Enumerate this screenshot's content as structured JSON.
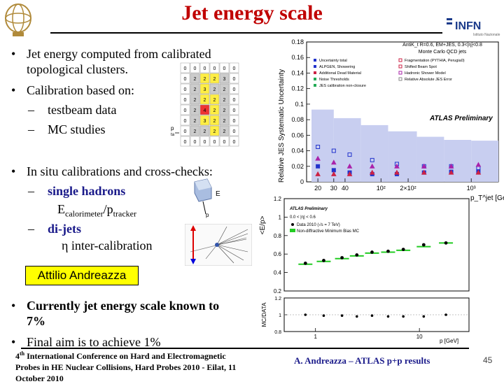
{
  "title": "Jet energy scale",
  "bullets": {
    "b1_line1": "Jet energy computed from calibrated",
    "b1_line2": "topological clusters.",
    "b2": "Calibration based on:",
    "b2_sub1": "testbeam data",
    "b2_sub2": "MC studies",
    "b3": "In situ calibrations and cross-checks:",
    "b3_sub1": "single hadrons",
    "b3_sub1_detail_E": "E",
    "b3_sub1_detail_Esub": "calorimeter",
    "b3_sub1_detail_slash": "/p",
    "b3_sub1_detail_psub": "tracker",
    "b3_sub2": "di-jets",
    "b3_sub2_detail": "η inter-calibration",
    "b4_line1": "Currently jet energy scale known to",
    "b4_line2": "7%",
    "b5": "Final aim is to achieve 1%"
  },
  "speaker_box": "Attilio Andreazza",
  "footer": {
    "conf_line1_a": "4",
    "conf_line1_sup": "th",
    "conf_line1_b": " International Conference on Hard and Electromagnetic",
    "conf_line2": "Probes in HE Nuclear Collisions, Hard Probes 2010 - Eilat, 11",
    "conf_line3": "October 2010",
    "author": "A. Andreazza – ATLAS p+p results",
    "page": "45"
  },
  "logo": {
    "infn": "INFN",
    "infn_sub": "Istituto Nazionale"
  },
  "cluster_grid": {
    "side_label_p": "p",
    "side_label_ta": "ta",
    "values": [
      [
        "0",
        "0",
        "0",
        "0",
        "0",
        "0"
      ],
      [
        "0",
        "2",
        "2",
        "2",
        "3",
        "0"
      ],
      [
        "0",
        "2",
        "3",
        "2",
        "2",
        "0"
      ],
      [
        "0",
        "2",
        "2",
        "2",
        "2",
        "0"
      ],
      [
        "0",
        "2",
        "4",
        "2",
        "2",
        "0"
      ],
      [
        "0",
        "2",
        "3",
        "2",
        "2",
        "0"
      ],
      [
        "0",
        "2",
        "2",
        "2",
        "2",
        "0"
      ],
      [
        "0",
        "0",
        "0",
        "0",
        "0",
        "0"
      ]
    ],
    "cell_colors": [
      [
        "w",
        "w",
        "w",
        "w",
        "w",
        "w"
      ],
      [
        "w",
        "g",
        "y",
        "y",
        "g",
        "w"
      ],
      [
        "w",
        "g",
        "y",
        "g",
        "g",
        "w"
      ],
      [
        "w",
        "g",
        "y",
        "y",
        "g",
        "w"
      ],
      [
        "w",
        "g",
        "r",
        "y",
        "g",
        "w"
      ],
      [
        "w",
        "g",
        "y",
        "y",
        "g",
        "w"
      ],
      [
        "w",
        "g",
        "g",
        "y",
        "g",
        "w"
      ],
      [
        "w",
        "w",
        "w",
        "w",
        "w",
        "w"
      ]
    ]
  },
  "hadron_icon": {
    "label_E": "E",
    "label_p": "p"
  },
  "chart_data": [
    {
      "type": "scatter",
      "title": "",
      "ylabel": "Relative JES Systematic Uncertainty",
      "xlabel": "p_T^jet [GeV]",
      "xscale": "log",
      "xlim": [
        15,
        2000
      ],
      "ylim": [
        0,
        0.18
      ],
      "yticks": [
        "0",
        "0.02",
        "0.04",
        "0.06",
        "0.08",
        "0.1",
        "0.12",
        "0.14",
        "0.16",
        "0.18"
      ],
      "xticks": [
        "20",
        "30",
        "40",
        "10²",
        "2×10²",
        "10³"
      ],
      "annotation_line1": "AntiK_t R=0.6, EM+JES, 0.3<|η|<0.8",
      "annotation_line2": "Monte Carlo QCD jets",
      "annotation_atlas": "ATLAS Preliminary",
      "legend": [
        [
          "Uncertainty total",
          "Fragmentation (PYTHIA, Perugia0)"
        ],
        [
          "ALPGEN, Showering",
          "Shifted Beam Spot"
        ],
        [
          "Additional Dead Material",
          "Hadronic Shower Model"
        ],
        [
          "Noise Thresholds",
          "Relative Absolute JES Error"
        ],
        [
          "JES calibration non-closure",
          ""
        ]
      ],
      "band_values": [
        {
          "x": 17,
          "y": 0.093
        },
        {
          "x": 30,
          "y": 0.082
        },
        {
          "x": 60,
          "y": 0.073
        },
        {
          "x": 120,
          "y": 0.065
        },
        {
          "x": 250,
          "y": 0.058
        },
        {
          "x": 500,
          "y": 0.054
        },
        {
          "x": 1000,
          "y": 0.053
        },
        {
          "x": 2000,
          "y": 0.053
        }
      ],
      "series": [
        {
          "name": "Uncertainty total",
          "points": [
            {
              "x": 20,
              "y": 0.02
            },
            {
              "x": 30,
              "y": 0.015
            },
            {
              "x": 45,
              "y": 0.012
            },
            {
              "x": 80,
              "y": 0.01
            },
            {
              "x": 150,
              "y": 0.01
            },
            {
              "x": 300,
              "y": 0.012
            },
            {
              "x": 600,
              "y": 0.013
            },
            {
              "x": 1200,
              "y": 0.013
            }
          ]
        },
        {
          "name": "ALPGEN, Showering",
          "points": [
            {
              "x": 20,
              "y": 0.045
            },
            {
              "x": 30,
              "y": 0.04
            },
            {
              "x": 45,
              "y": 0.035
            },
            {
              "x": 80,
              "y": 0.028
            },
            {
              "x": 150,
              "y": 0.023
            },
            {
              "x": 300,
              "y": 0.02
            },
            {
              "x": 600,
              "y": 0.02
            },
            {
              "x": 1200,
              "y": 0.018
            }
          ]
        },
        {
          "name": "Additional Dead Material",
          "points": [
            {
              "x": 20,
              "y": 0.01
            },
            {
              "x": 30,
              "y": 0.01
            },
            {
              "x": 45,
              "y": 0.01
            },
            {
              "x": 80,
              "y": 0.012
            },
            {
              "x": 150,
              "y": 0.012
            },
            {
              "x": 300,
              "y": 0.012
            },
            {
              "x": 600,
              "y": 0.012
            },
            {
              "x": 1200,
              "y": 0.012
            }
          ]
        },
        {
          "name": "Hadronic Shower Model",
          "points": [
            {
              "x": 20,
              "y": 0.03
            },
            {
              "x": 30,
              "y": 0.025
            },
            {
              "x": 45,
              "y": 0.02
            },
            {
              "x": 80,
              "y": 0.02
            },
            {
              "x": 150,
              "y": 0.02
            },
            {
              "x": 300,
              "y": 0.02
            },
            {
              "x": 600,
              "y": 0.02
            },
            {
              "x": 1200,
              "y": 0.022
            }
          ]
        }
      ]
    },
    {
      "type": "scatter",
      "title": "",
      "ylabel": "<E/p>",
      "xlabel": "p [GeV]",
      "xscale": "log",
      "xlim": [
        0.5,
        30
      ],
      "ylim": [
        0.2,
        1.2
      ],
      "yticks": [
        "0.2",
        "0.4",
        "0.6",
        "0.8",
        "1",
        "1.2"
      ],
      "xticks": [
        "1",
        "10"
      ],
      "annotation_atlas": "ATLAS Preliminary",
      "annotation_eta": "0.0 < |η| < 0.6",
      "legend": [
        "Data 2010 (√s = 7 TeV)",
        "Non-diffractive Minimum Bias MC"
      ],
      "series": [
        {
          "name": "Data 2010 (√s = 7 TeV)",
          "points": [
            {
              "x": 0.8,
              "y": 0.5
            },
            {
              "x": 1.2,
              "y": 0.53
            },
            {
              "x": 1.8,
              "y": 0.56
            },
            {
              "x": 2.5,
              "y": 0.59
            },
            {
              "x": 3.5,
              "y": 0.62
            },
            {
              "x": 5,
              "y": 0.63
            },
            {
              "x": 7,
              "y": 0.65
            },
            {
              "x": 11,
              "y": 0.7
            },
            {
              "x": 18,
              "y": 0.72
            }
          ]
        },
        {
          "name": "Non-diffractive Minimum Bias MC",
          "points": [
            {
              "x": 0.8,
              "y": 0.49
            },
            {
              "x": 1.2,
              "y": 0.52
            },
            {
              "x": 1.8,
              "y": 0.55
            },
            {
              "x": 2.5,
              "y": 0.58
            },
            {
              "x": 3.5,
              "y": 0.61
            },
            {
              "x": 5,
              "y": 0.62
            },
            {
              "x": 7,
              "y": 0.64
            },
            {
              "x": 11,
              "y": 0.68
            },
            {
              "x": 18,
              "y": 0.72
            }
          ]
        }
      ],
      "ratio": {
        "ylabel": "MC/DATA",
        "ylim": [
          0.8,
          1.2
        ],
        "yticks": [
          "0.8",
          "1",
          "1.2"
        ],
        "points": [
          {
            "x": 0.8,
            "y": 1.0
          },
          {
            "x": 1.2,
            "y": 0.99
          },
          {
            "x": 1.8,
            "y": 0.99
          },
          {
            "x": 2.5,
            "y": 0.98
          },
          {
            "x": 3.5,
            "y": 0.99
          },
          {
            "x": 5,
            "y": 0.98
          },
          {
            "x": 7,
            "y": 0.98
          },
          {
            "x": 11,
            "y": 0.98
          },
          {
            "x": 18,
            "y": 1.0
          }
        ]
      }
    }
  ]
}
